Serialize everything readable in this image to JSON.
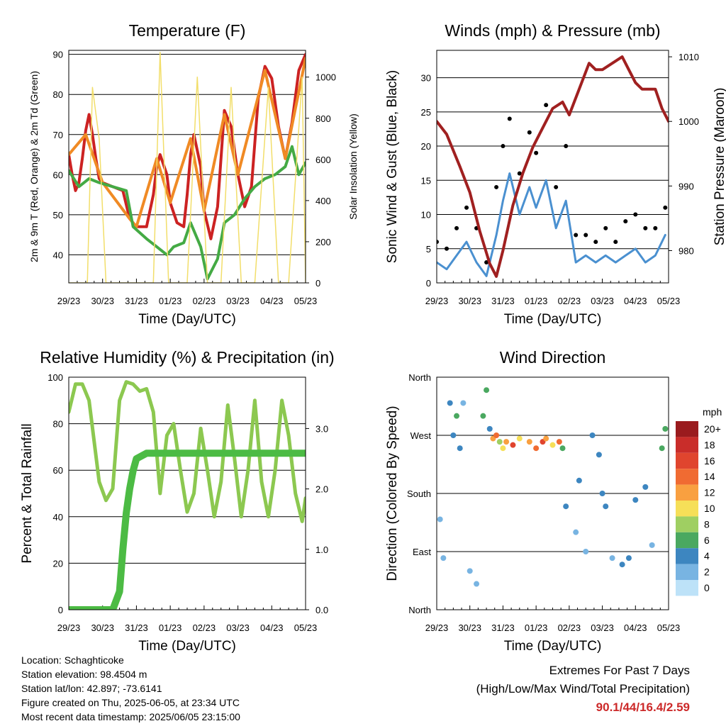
{
  "chart_data": [
    {
      "type": "line",
      "title": "Temperature (F)",
      "xlabel": "Time (Day/UTC)",
      "ylabel": "2m & 9m T (Red, Orange) & 2m Td (Green)",
      "y2label": "Solar Insolation (Yellow)",
      "x_ticks": [
        "29/23",
        "30/23",
        "31/23",
        "01/23",
        "02/23",
        "03/23",
        "04/23",
        "05/23"
      ],
      "ylim": [
        33,
        91
      ],
      "y_ticks": [
        40,
        50,
        60,
        70,
        80,
        90
      ],
      "y2lim": [
        0,
        1130
      ],
      "y2_ticks": [
        0,
        200,
        400,
        600,
        800,
        1000
      ],
      "grid": true,
      "series": [
        {
          "name": "2m T",
          "color": "#cc2222",
          "x": [
            0,
            0.1,
            0.2,
            0.3,
            0.4,
            0.5,
            0.6,
            0.7,
            0.8,
            0.9,
            1.0,
            1.3,
            1.6,
            1.8,
            2.0,
            2.3,
            2.5,
            2.6,
            2.7,
            2.9,
            3.0,
            3.2,
            3.4,
            3.5,
            3.6,
            3.7,
            3.9,
            4.0,
            4.2,
            4.4,
            4.6,
            4.8,
            5.0,
            5.2,
            5.4,
            5.6,
            5.8,
            6.0,
            6.2,
            6.4,
            6.6,
            6.8,
            7.0
          ],
          "y": [
            65,
            60,
            56,
            58,
            64,
            71,
            75,
            70,
            64,
            59,
            58,
            57,
            56,
            49,
            47,
            47,
            55,
            62,
            65,
            60,
            53,
            48,
            47,
            55,
            65,
            70,
            62,
            51,
            44,
            52,
            76,
            72,
            60,
            52,
            57,
            79,
            87,
            84,
            72,
            64,
            73,
            86,
            90
          ]
        },
        {
          "name": "9m T",
          "color": "#f08a24",
          "x": [
            0,
            0.5,
            1.0,
            1.8,
            2.0,
            2.6,
            3.0,
            3.6,
            4.0,
            4.6,
            5.0,
            5.8,
            6.4,
            7.0
          ],
          "y": [
            65,
            70,
            58,
            49,
            47,
            64,
            53,
            69,
            51,
            75,
            60,
            86,
            64,
            89
          ]
        },
        {
          "name": "2m Td",
          "color": "#44aa44",
          "x": [
            0,
            0.3,
            0.6,
            0.9,
            1.3,
            1.7,
            1.9,
            2.3,
            2.6,
            2.9,
            3.1,
            3.4,
            3.6,
            3.9,
            4.1,
            4.4,
            4.6,
            4.9,
            5.2,
            5.5,
            5.8,
            6.1,
            6.4,
            6.6,
            6.8,
            7.0
          ],
          "y": [
            61,
            57,
            59,
            58,
            57,
            56,
            47,
            44,
            42,
            40,
            42,
            43,
            48,
            42,
            34,
            39,
            48,
            50,
            54,
            57,
            59,
            60,
            62,
            67,
            60,
            63
          ]
        },
        {
          "name": "Solar Insolation",
          "color": "#f2de6a",
          "axis": "y2",
          "x": [
            0,
            0.55,
            0.7,
            0.9,
            1.1,
            1.3,
            1.5,
            2.2,
            2.5,
            2.7,
            2.95,
            3.2,
            3.5,
            3.8,
            4.1,
            4.5,
            4.8,
            5.1,
            5.5,
            5.9,
            6.2,
            6.5,
            6.9,
            7.0
          ],
          "y": [
            0,
            0,
            950,
            700,
            0,
            0,
            0,
            0,
            0,
            1120,
            0,
            0,
            0,
            1000,
            0,
            0,
            950,
            0,
            0,
            950,
            0,
            0,
            1000,
            0
          ]
        }
      ]
    },
    {
      "type": "scatter",
      "title": "Winds (mph) & Pressure (mb)",
      "xlabel": "Time (Day/UTC)",
      "ylabel": "Sonic Wind & Gust (Blue, Black)",
      "y2label": "Station Pressure (Maroon)",
      "x_ticks": [
        "29/23",
        "30/23",
        "31/23",
        "01/23",
        "02/23",
        "03/23",
        "04/23",
        "05/23"
      ],
      "ylim": [
        0,
        34
      ],
      "y_ticks": [
        0,
        5,
        10,
        15,
        20,
        25,
        30
      ],
      "y2lim": [
        975,
        1011
      ],
      "y2_ticks": [
        980,
        990,
        1000,
        1010
      ],
      "grid": true,
      "series": [
        {
          "name": "Sonic Wind",
          "color": "#4a90d0",
          "x": [
            0,
            0.3,
            0.6,
            0.9,
            1.2,
            1.5,
            1.8,
            2.0,
            2.2,
            2.5,
            2.8,
            3.0,
            3.3,
            3.6,
            3.9,
            4.2,
            4.5,
            4.8,
            5.1,
            5.4,
            5.7,
            6.0,
            6.3,
            6.6,
            6.9
          ],
          "y": [
            3,
            2,
            4,
            6,
            3,
            1,
            7,
            12,
            16,
            10,
            14,
            11,
            15,
            8,
            12,
            3,
            4,
            3,
            4,
            3,
            4,
            5,
            3,
            4,
            7
          ]
        },
        {
          "name": "Gust",
          "color": "#000000",
          "x": [
            0,
            0.3,
            0.6,
            0.9,
            1.2,
            1.5,
            1.8,
            2.0,
            2.2,
            2.5,
            2.8,
            3.0,
            3.3,
            3.6,
            3.9,
            4.2,
            4.5,
            4.8,
            5.1,
            5.4,
            5.7,
            6.0,
            6.3,
            6.6,
            6.9
          ],
          "y": [
            6,
            5,
            8,
            11,
            8,
            3,
            14,
            20,
            24,
            16,
            22,
            19,
            26,
            14,
            20,
            7,
            7,
            6,
            8,
            6,
            9,
            10,
            8,
            8,
            11
          ]
        },
        {
          "name": "Station Pressure",
          "color": "#a02020",
          "axis": "y2",
          "x": [
            0,
            0.3,
            0.7,
            1.0,
            1.3,
            1.6,
            1.8,
            2.0,
            2.3,
            2.6,
            2.9,
            3.2,
            3.5,
            3.8,
            4.0,
            4.3,
            4.6,
            4.8,
            5.0,
            5.3,
            5.6,
            5.8,
            6.0,
            6.2,
            6.4,
            6.6,
            6.8,
            7.0
          ],
          "y": [
            1000,
            998,
            993,
            989,
            983,
            978,
            976,
            980,
            987,
            992,
            996,
            999,
            1002,
            1003,
            1001,
            1005,
            1009,
            1008,
            1008,
            1009,
            1010,
            1008,
            1006,
            1005,
            1005,
            1005,
            1002,
            1000
          ]
        }
      ]
    },
    {
      "type": "line",
      "title": "Relative Humidity (%) & Precipitation (in)",
      "xlabel": "Time (Day/UTC)",
      "ylabel": "Percent & Total Rainfall",
      "x_ticks": [
        "29/23",
        "30/23",
        "31/23",
        "01/23",
        "02/23",
        "03/23",
        "04/23",
        "05/23"
      ],
      "ylim": [
        0,
        100
      ],
      "y_ticks": [
        0,
        20,
        40,
        60,
        80,
        100
      ],
      "y2lim": [
        0,
        3.85
      ],
      "y2_ticks": [
        "0.0",
        "1.0",
        "2.0",
        "3.0"
      ],
      "grid": true,
      "series": [
        {
          "name": "Relative Humidity",
          "color": "#8cc850",
          "x": [
            0,
            0.2,
            0.4,
            0.6,
            0.9,
            1.1,
            1.3,
            1.5,
            1.7,
            1.9,
            2.1,
            2.3,
            2.5,
            2.7,
            2.9,
            3.1,
            3.3,
            3.5,
            3.7,
            3.9,
            4.1,
            4.3,
            4.5,
            4.7,
            4.9,
            5.1,
            5.3,
            5.5,
            5.7,
            5.9,
            6.1,
            6.3,
            6.5,
            6.7,
            6.9,
            7.0
          ],
          "y": [
            85,
            97,
            97,
            90,
            55,
            47,
            52,
            90,
            98,
            97,
            94,
            95,
            85,
            50,
            75,
            80,
            60,
            42,
            50,
            78,
            60,
            40,
            55,
            88,
            65,
            40,
            60,
            90,
            55,
            40,
            60,
            90,
            75,
            50,
            38,
            48
          ]
        },
        {
          "name": "Total Precipitation",
          "color": "#4cbb44",
          "axis": "y2",
          "x": [
            0,
            1.3,
            1.5,
            1.6,
            1.7,
            1.8,
            1.9,
            2.0,
            2.3,
            7.0
          ],
          "y": [
            0,
            0,
            0.3,
            1.0,
            1.6,
            2.0,
            2.3,
            2.5,
            2.59,
            2.59
          ]
        }
      ]
    },
    {
      "type": "scatter",
      "title": "Wind Direction",
      "xlabel": "Time (Day/UTC)",
      "ylabel": "Direction (Colored By Speed)",
      "x_ticks": [
        "29/23",
        "30/23",
        "31/23",
        "01/23",
        "02/23",
        "03/23",
        "04/23",
        "05/23"
      ],
      "y_ticks": [
        "North",
        "East",
        "South",
        "West",
        "North"
      ],
      "ylim": [
        0,
        360
      ],
      "grid": true,
      "legend": {
        "title": "mph",
        "labels": [
          "20+",
          "18",
          "16",
          "14",
          "12",
          "10",
          "8",
          "6",
          "4",
          "2",
          "0"
        ],
        "colors": [
          "#9a1b1e",
          "#c92d2a",
          "#e0452e",
          "#f06b32",
          "#f9a040",
          "#f6df58",
          "#9fcf62",
          "#4aa860",
          "#3d86c0",
          "#78b4e2",
          "#bde2f8"
        ]
      },
      "series": [
        {
          "name": "direction",
          "x": [
            0.1,
            0.2,
            0.4,
            0.5,
            0.6,
            0.7,
            0.8,
            1.0,
            1.2,
            1.4,
            1.5,
            1.6,
            1.7,
            1.8,
            1.9,
            2.0,
            2.1,
            2.3,
            2.5,
            2.8,
            3.0,
            3.2,
            3.3,
            3.5,
            3.7,
            3.8,
            3.9,
            4.2,
            4.3,
            4.5,
            4.7,
            4.9,
            5.0,
            5.1,
            5.3,
            5.6,
            5.8,
            6.0,
            6.3,
            6.5,
            6.8,
            6.9
          ],
          "y": [
            140,
            80,
            320,
            270,
            300,
            250,
            320,
            60,
            40,
            300,
            340,
            280,
            265,
            270,
            260,
            250,
            260,
            255,
            265,
            260,
            250,
            260,
            265,
            255,
            260,
            250,
            160,
            120,
            200,
            90,
            270,
            240,
            180,
            160,
            80,
            70,
            80,
            170,
            190,
            100,
            250,
            280
          ],
          "speed": [
            1,
            2,
            3,
            4,
            5,
            3,
            2,
            1,
            1,
            5,
            6,
            4,
            12,
            14,
            8,
            10,
            12,
            15,
            9,
            11,
            13,
            16,
            12,
            10,
            14,
            5,
            3,
            2,
            3,
            1,
            4,
            3,
            4,
            3,
            2,
            4,
            3,
            3,
            4,
            2,
            5,
            6
          ]
        }
      ]
    }
  ],
  "info": {
    "location": "Location: Schaghticoke",
    "elevation": "Station elevation: 98.4504 m",
    "latlon": "Station lat/lon: 42.897; -73.6141",
    "created": "Figure created on Thu, 2025-06-05, at 23:34 UTC",
    "timestamp": "Most recent data timestamp: 2025/06/05 23:15:00"
  },
  "extremes": {
    "title": "Extremes For Past 7 Days",
    "subtitle": "(High/Low/Max Wind/Total Precipitation)",
    "values": "90.1/44/16.4/2.59"
  }
}
